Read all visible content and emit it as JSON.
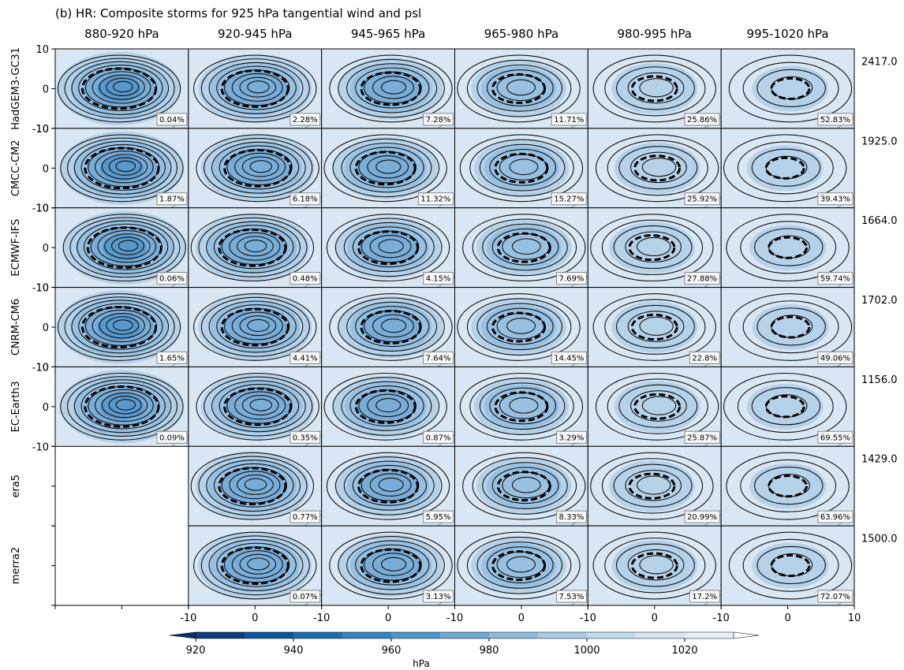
{
  "chart_data": {
    "type": "composite-grid",
    "title": "(b) HR: Composite storms for 925 hPa tangential wind and psl",
    "columns": [
      "880-920 hPa",
      "920-945 hPa",
      "945-965 hPa",
      "965-980 hPa",
      "980-995 hPa",
      "995-1020 hPa"
    ],
    "rows": [
      {
        "name": "HadGEM3-GC31",
        "total": "2417.0",
        "panels": [
          "0.04%",
          "2.28%",
          "7.28%",
          "11.71%",
          "25.86%",
          "52.83%"
        ]
      },
      {
        "name": "CMCC-CM2",
        "total": "1925.0",
        "panels": [
          "1.87%",
          "6.18%",
          "11.32%",
          "15.27%",
          "25.92%",
          "39.43%"
        ]
      },
      {
        "name": "ECMWF-IFS",
        "total": "1664.0",
        "panels": [
          "0.06%",
          "0.48%",
          "4.15%",
          "7.69%",
          "27.88%",
          "59.74%"
        ]
      },
      {
        "name": "CNRM-CM6",
        "total": "1702.0",
        "panels": [
          "1.65%",
          "4.41%",
          "7.64%",
          "14.45%",
          "22.8%",
          "49.06%"
        ]
      },
      {
        "name": "EC-Earth3",
        "total": "1156.0",
        "panels": [
          "0.09%",
          "0.35%",
          "0.87%",
          "3.29%",
          "25.87%",
          "69.55%"
        ]
      },
      {
        "name": "era5",
        "total": "1429.0",
        "panels": [
          null,
          "0.77%",
          "5.95%",
          "8.33%",
          "20.99%",
          "63.96%"
        ]
      },
      {
        "name": "merra2",
        "total": "1500.0",
        "panels": [
          null,
          "0.07%",
          "3.13%",
          "7.53%",
          "17.2%",
          "72.07%"
        ]
      }
    ],
    "xlim": [
      -10,
      10
    ],
    "xticks": [
      -10,
      0,
      10
    ],
    "ylim": [
      -10,
      10
    ],
    "yticks": [
      -10,
      0,
      10
    ],
    "colorbar": {
      "label": "hPa",
      "ticks": [
        920,
        940,
        960,
        980,
        1000,
        1020
      ],
      "bounds": [
        920,
        930,
        940,
        950,
        960,
        970,
        980,
        990,
        1000,
        1010,
        1020,
        1030
      ],
      "colors": [
        "#0d3f7e",
        "#0e559c",
        "#1f6cad",
        "#3583bf",
        "#5097c9",
        "#6ea9d4",
        "#8bbbdd",
        "#a8cde5",
        "#c1dbee",
        "#d5e5f3",
        "#e6eff8"
      ],
      "extend_colors": [
        "#08306b",
        "#ffffff"
      ]
    }
  }
}
